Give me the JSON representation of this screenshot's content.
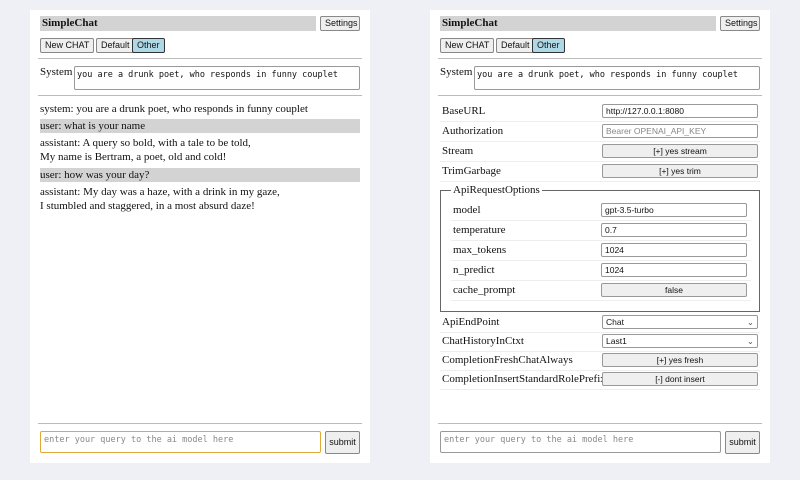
{
  "app": {
    "title": "SimpleChat",
    "settings_label": "Settings",
    "buttons": [
      "New CHAT",
      "Default",
      "Other"
    ],
    "selected": "Other"
  },
  "system": {
    "label": "System",
    "value": "you are a drunk poet, who responds in funny couplet"
  },
  "chat": [
    {
      "role": "system",
      "lines": [
        "system: you are a drunk poet, who responds in funny couplet"
      ]
    },
    {
      "role": "user",
      "lines": [
        "user: what is your name"
      ]
    },
    {
      "role": "assistant",
      "lines": [
        "assistant: A query so bold, with a tale to be told,",
        "My name is Bertram, a poet, old and cold!"
      ]
    },
    {
      "role": "user",
      "lines": [
        "user: how was your day?"
      ]
    },
    {
      "role": "assistant",
      "lines": [
        "assistant: My day was a haze, with a drink in my gaze,",
        "I stumbled and staggered, in a most absurd daze!"
      ]
    }
  ],
  "input": {
    "placeholder": "enter your query to the ai model here",
    "submit_label": "submit"
  },
  "settings": {
    "rows": [
      {
        "label": "BaseURL",
        "type": "input",
        "value": "http://127.0.0.1:8080"
      },
      {
        "label": "Authorization",
        "type": "input",
        "placeholder": "Bearer OPENAI_API_KEY"
      },
      {
        "label": "Stream",
        "type": "button",
        "value": "[+] yes stream"
      },
      {
        "label": "TrimGarbage",
        "type": "button",
        "value": "[+] yes trim"
      }
    ],
    "api_options": {
      "legend": "ApiRequestOptions",
      "rows": [
        {
          "label": "model",
          "type": "input",
          "value": "gpt-3.5-turbo"
        },
        {
          "label": "temperature",
          "type": "input",
          "value": "0.7"
        },
        {
          "label": "max_tokens",
          "type": "input",
          "value": "1024"
        },
        {
          "label": "n_predict",
          "type": "input",
          "value": "1024"
        },
        {
          "label": "cache_prompt",
          "type": "button",
          "value": "false"
        }
      ]
    },
    "rows2": [
      {
        "label": "ApiEndPoint",
        "type": "select",
        "value": "Chat"
      },
      {
        "label": "ChatHistoryInCtxt",
        "type": "select",
        "value": "Last1"
      },
      {
        "label": "CompletionFreshChatAlways",
        "type": "button",
        "value": "[+] yes fresh"
      },
      {
        "label": "CompletionInsertStandardRolePrefix",
        "type": "button",
        "value": "[-] dont insert"
      }
    ]
  }
}
